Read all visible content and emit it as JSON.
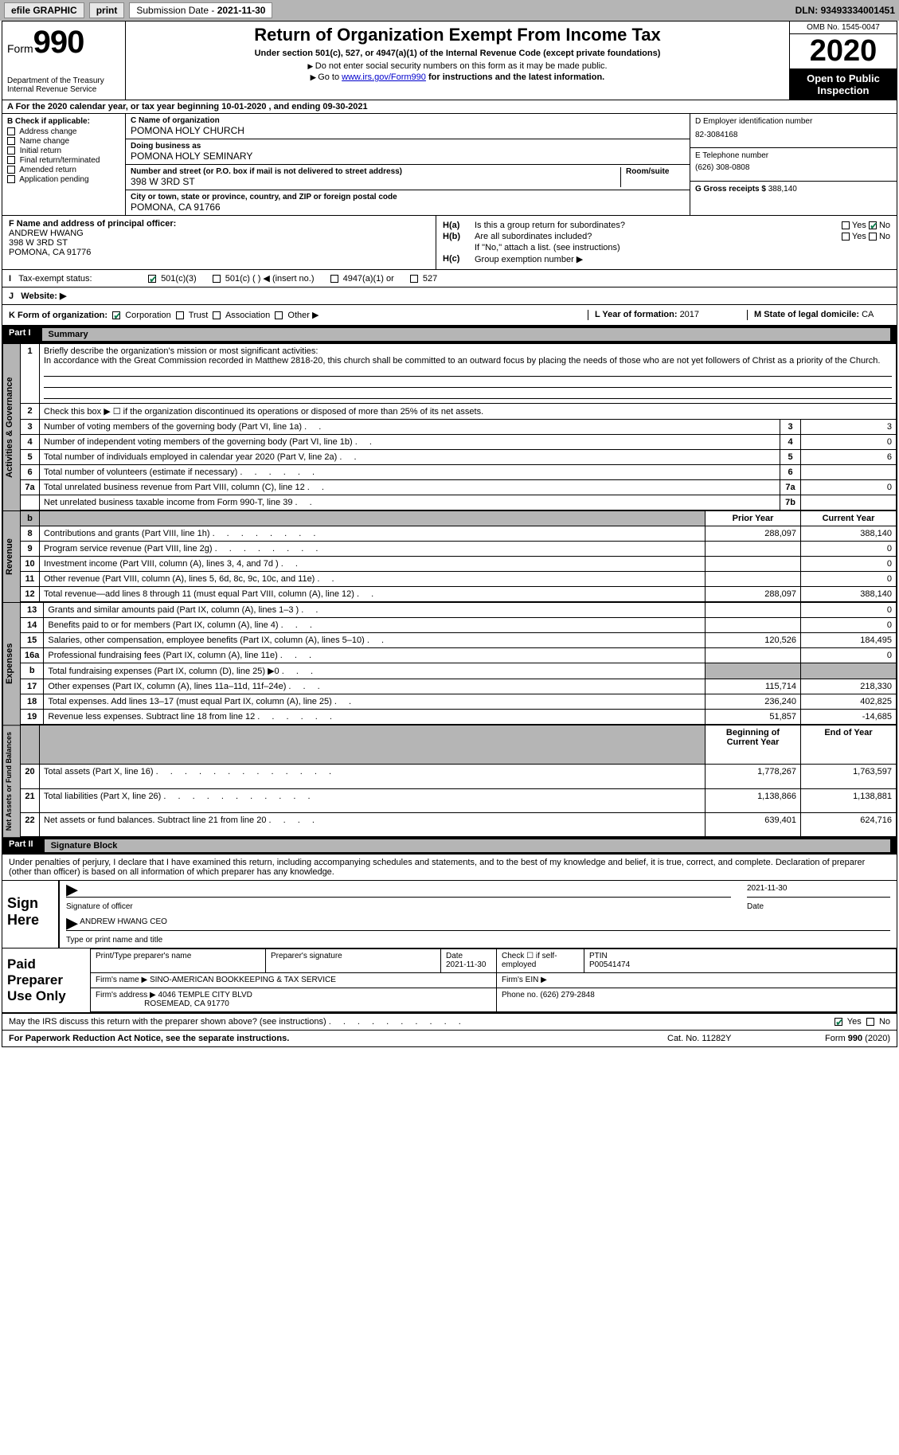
{
  "toolbar": {
    "efile": "efile GRAPHIC",
    "print": "print",
    "subdate_label": "Submission Date - ",
    "subdate": "2021-11-30",
    "dln_label": "DLN: ",
    "dln": "93493334001451"
  },
  "header": {
    "form_label": "Form",
    "form_no": "990",
    "dept": "Department of the Treasury\nInternal Revenue Service",
    "title": "Return of Organization Exempt From Income Tax",
    "subtitle": "Under section 501(c), 527, or 4947(a)(1) of the Internal Revenue Code (except private foundations)",
    "inst1": "Do not enter social security numbers on this form as it may be made public.",
    "inst2_pre": "Go to ",
    "inst2_link": "www.irs.gov/Form990",
    "inst2_post": " for instructions and the latest information.",
    "omb": "OMB No. 1545-0047",
    "year": "2020",
    "otpi": "Open to Public Inspection"
  },
  "ty": {
    "label_a": "A For the 2020 calendar year, or tax year beginning ",
    "begin": "10-01-2020",
    "mid": " , and ending ",
    "end": "09-30-2021"
  },
  "b": {
    "heading": "B Check if applicable:",
    "opts": [
      "Address change",
      "Name change",
      "Initial return",
      "Final return/terminated",
      "Amended return",
      "Application pending"
    ]
  },
  "c": {
    "name_label": "C Name of organization",
    "name": "POMONA HOLY CHURCH",
    "dba_label": "Doing business as",
    "dba": "POMONA HOLY SEMINARY",
    "addr_label": "Number and street (or P.O. box if mail is not delivered to street address)",
    "room_label": "Room/suite",
    "addr": "398 W 3RD ST",
    "city_label": "City or town, state or province, country, and ZIP or foreign postal code",
    "city": "POMONA, CA  91766"
  },
  "d": {
    "ein_label": "D Employer identification number",
    "ein": "82-3084168"
  },
  "e": {
    "tel_label": "E Telephone number",
    "tel": "(626) 308-0808"
  },
  "g": {
    "gross_label": "G Gross receipts $ ",
    "gross": "388,140"
  },
  "f": {
    "label": "F Name and address of principal officer:",
    "name": "ANDREW HWANG",
    "addr1": "398 W 3RD ST",
    "addr2": "POMONA, CA  91776"
  },
  "h": {
    "a_label": "H(a)",
    "a_text": "Is this a group return for subordinates?",
    "b_label": "H(b)",
    "b_text": "Are all subordinates included?",
    "b_note": "If \"No,\" attach a list. (see instructions)",
    "c_label": "H(c)",
    "c_text": "Group exemption number ▶",
    "yes": "Yes",
    "no": "No"
  },
  "i": {
    "label": "Tax-exempt status:",
    "o1": "501(c)(3)",
    "o2": "501(c) (  ) ◀ (insert no.)",
    "o3": "4947(a)(1) or",
    "o4": "527"
  },
  "j": {
    "label": "Website: ▶"
  },
  "k": {
    "label": "K Form of organization:",
    "o1": "Corporation",
    "o2": "Trust",
    "o3": "Association",
    "o4": "Other ▶",
    "l_label": "L Year of formation: ",
    "l_val": "2017",
    "m_label": "M State of legal domicile: ",
    "m_val": "CA"
  },
  "part1": {
    "num": "Part I",
    "title": "Summary",
    "l1_label": "Briefly describe the organization's mission or most significant activities:",
    "l1_text": "In accordance with the Great Commission recorded in Matthew 2818-20, this church shall be committed to an outward focus by placing the needs of those who are not yet followers of Christ as a priority of the Church.",
    "l2": "Check this box ▶ ☐ if the organization discontinued its operations or disposed of more than 25% of its net assets.",
    "rows_gov": [
      {
        "n": "3",
        "t": "Number of voting members of the governing body (Part VI, line 1a)",
        "rn": "3",
        "v": "3"
      },
      {
        "n": "4",
        "t": "Number of independent voting members of the governing body (Part VI, line 1b)",
        "rn": "4",
        "v": "0"
      },
      {
        "n": "5",
        "t": "Total number of individuals employed in calendar year 2020 (Part V, line 2a)",
        "rn": "5",
        "v": "6"
      },
      {
        "n": "6",
        "t": "Total number of volunteers (estimate if necessary)",
        "rn": "6",
        "v": ""
      },
      {
        "n": "7a",
        "t": "Total unrelated business revenue from Part VIII, column (C), line 12",
        "rn": "7a",
        "v": "0"
      },
      {
        "n": "",
        "t": "Net unrelated business taxable income from Form 990-T, line 39",
        "rn": "7b",
        "v": ""
      }
    ],
    "col_prior": "Prior Year",
    "col_curr": "Current Year",
    "rows_rev": [
      {
        "n": "8",
        "t": "Contributions and grants (Part VIII, line 1h)",
        "p": "288,097",
        "c": "388,140"
      },
      {
        "n": "9",
        "t": "Program service revenue (Part VIII, line 2g)",
        "p": "",
        "c": "0"
      },
      {
        "n": "10",
        "t": "Investment income (Part VIII, column (A), lines 3, 4, and 7d )",
        "p": "",
        "c": "0"
      },
      {
        "n": "11",
        "t": "Other revenue (Part VIII, column (A), lines 5, 6d, 8c, 9c, 10c, and 11e)",
        "p": "",
        "c": "0"
      },
      {
        "n": "12",
        "t": "Total revenue—add lines 8 through 11 (must equal Part VIII, column (A), line 12)",
        "p": "288,097",
        "c": "388,140"
      }
    ],
    "rows_exp": [
      {
        "n": "13",
        "t": "Grants and similar amounts paid (Part IX, column (A), lines 1–3 )",
        "p": "",
        "c": "0"
      },
      {
        "n": "14",
        "t": "Benefits paid to or for members (Part IX, column (A), line 4)",
        "p": "",
        "c": "0"
      },
      {
        "n": "15",
        "t": "Salaries, other compensation, employee benefits (Part IX, column (A), lines 5–10)",
        "p": "120,526",
        "c": "184,495"
      },
      {
        "n": "16a",
        "t": "Professional fundraising fees (Part IX, column (A), line 11e)",
        "p": "",
        "c": "0"
      },
      {
        "n": "b",
        "t": "Total fundraising expenses (Part IX, column (D), line 25) ▶0",
        "p": "grey",
        "c": "grey"
      },
      {
        "n": "17",
        "t": "Other expenses (Part IX, column (A), lines 11a–11d, 11f–24e)",
        "p": "115,714",
        "c": "218,330"
      },
      {
        "n": "18",
        "t": "Total expenses. Add lines 13–17 (must equal Part IX, column (A), line 25)",
        "p": "236,240",
        "c": "402,825"
      },
      {
        "n": "19",
        "t": "Revenue less expenses. Subtract line 18 from line 12",
        "p": "51,857",
        "c": "-14,685"
      }
    ],
    "col_begin": "Beginning of Current Year",
    "col_end": "End of Year",
    "rows_na": [
      {
        "n": "20",
        "t": "Total assets (Part X, line 16)",
        "p": "1,778,267",
        "c": "1,763,597"
      },
      {
        "n": "21",
        "t": "Total liabilities (Part X, line 26)",
        "p": "1,138,866",
        "c": "1,138,881"
      },
      {
        "n": "22",
        "t": "Net assets or fund balances. Subtract line 21 from line 20",
        "p": "639,401",
        "c": "624,716"
      }
    ],
    "vtab1": "Activities & Governance",
    "vtab2": "Revenue",
    "vtab3": "Expenses",
    "vtab4": "Net Assets or Fund Balances"
  },
  "part2": {
    "num": "Part II",
    "title": "Signature Block",
    "intro": "Under penalties of perjury, I declare that I have examined this return, including accompanying schedules and statements, and to the best of my knowledge and belief, it is true, correct, and complete. Declaration of preparer (other than officer) is based on all information of which preparer has any knowledge.",
    "sign_here": "Sign Here",
    "sig_officer_lbl": "Signature of officer",
    "date_lbl": "Date",
    "sig_date": "2021-11-30",
    "name_title": "ANDREW HWANG CEO",
    "name_title_lbl": "Type or print name and title",
    "paid": "Paid Preparer Use Only",
    "pp_name_lbl": "Print/Type preparer's name",
    "pp_sig_lbl": "Preparer's signature",
    "pp_date_lbl": "Date",
    "pp_date": "2021-11-30",
    "pp_check_lbl": "Check ☐ if self-employed",
    "pp_ptin_lbl": "PTIN",
    "pp_ptin": "P00541474",
    "firm_name_lbl": "Firm's name    ▶ ",
    "firm_name": "SINO-AMERICAN BOOKKEEPING & TAX SERVICE",
    "firm_ein_lbl": "Firm's EIN ▶",
    "firm_addr_lbl": "Firm's address ▶ ",
    "firm_addr1": "4046 TEMPLE CITY BLVD",
    "firm_addr2": "ROSEMEAD, CA  91770",
    "firm_phone_lbl": "Phone no. ",
    "firm_phone": "(626) 279-2848",
    "discuss": "May the IRS discuss this return with the preparer shown above? (see instructions)",
    "yes": "Yes",
    "no": "No"
  },
  "footer": {
    "pra": "For Paperwork Reduction Act Notice, see the separate instructions.",
    "cat": "Cat. No. 11282Y",
    "form": "Form 990 (2020)"
  }
}
